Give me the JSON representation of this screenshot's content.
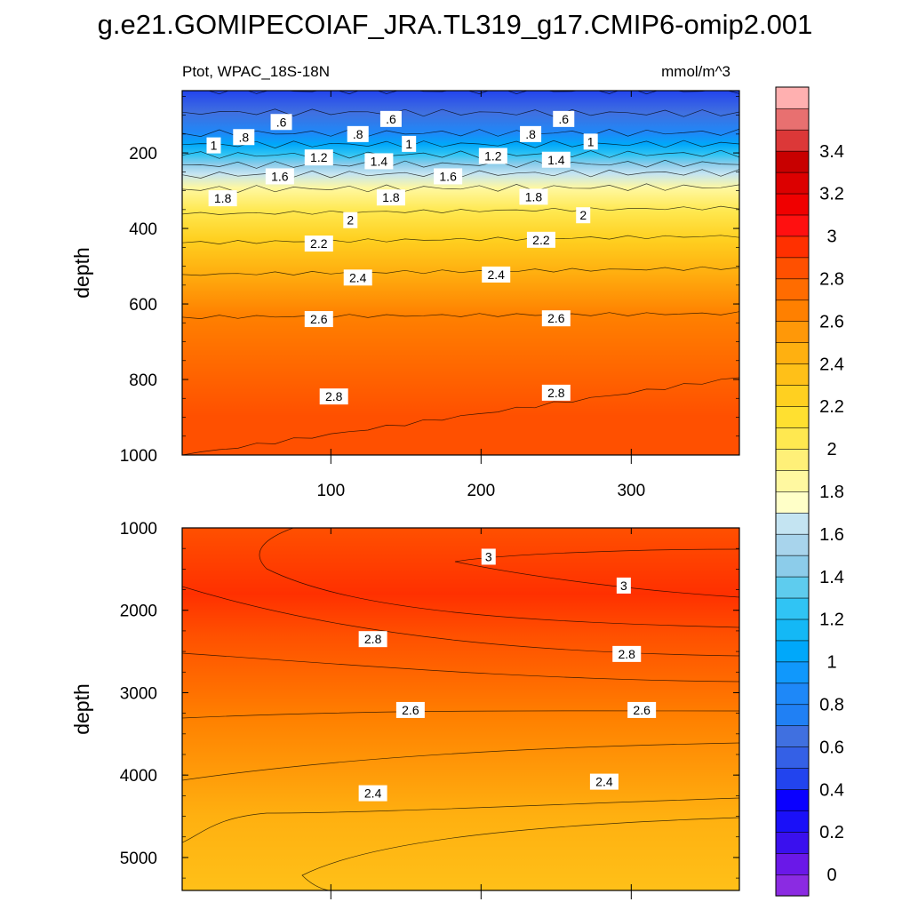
{
  "chart_data": {
    "type": "contour",
    "title": "g.e21.GOMIPECOIAF_JRA.TL319_g17.CMIP6-omip2.001",
    "variable_label": "Ptot, WPAC_18S-18N",
    "units": "mmol/m^3",
    "xlim": [
      1,
      372
    ],
    "x_ticks": [
      100,
      200,
      300
    ],
    "panels": [
      {
        "name": "upper",
        "ylabel": "depth",
        "ylim": [
          1000,
          35
        ],
        "y_ticks": [
          200,
          400,
          600,
          800,
          1000
        ],
        "show_x_tick_labels": true,
        "contour_levels": [
          {
            "value": 0.4,
            "depth_left": 35,
            "depth_right": 35
          },
          {
            "value": 0.6,
            "depth_left": 92,
            "depth_right": 95
          },
          {
            "value": 0.8,
            "depth_left": 148,
            "depth_right": 146
          },
          {
            "value": 1.0,
            "depth_left": 178,
            "depth_right": 176
          },
          {
            "value": 1.2,
            "depth_left": 206,
            "depth_right": 202
          },
          {
            "value": 1.4,
            "depth_left": 232,
            "depth_right": 228
          },
          {
            "value": 1.6,
            "depth_left": 258,
            "depth_right": 252
          },
          {
            "value": 1.8,
            "depth_left": 296,
            "depth_right": 290
          },
          {
            "value": 2.0,
            "depth_left": 362,
            "depth_right": 345
          },
          {
            "value": 2.2,
            "depth_left": 438,
            "depth_right": 420
          },
          {
            "value": 2.4,
            "depth_left": 522,
            "depth_right": 505
          },
          {
            "value": 2.6,
            "depth_left": 635,
            "depth_right": 625
          },
          {
            "value": 2.8,
            "depth_left": 1000,
            "depth_right": 795
          }
        ],
        "contour_labels": [
          {
            "text": ".8",
            "x": 42,
            "depth": 158
          },
          {
            "text": ".6",
            "x": 67,
            "depth": 118
          },
          {
            "text": "1",
            "x": 22,
            "depth": 180
          },
          {
            "text": ".8",
            "x": 118,
            "depth": 150
          },
          {
            "text": ".6",
            "x": 140,
            "depth": 110
          },
          {
            "text": "1",
            "x": 152,
            "depth": 176
          },
          {
            "text": "1.2",
            "x": 92,
            "depth": 212
          },
          {
            "text": "1.4",
            "x": 132,
            "depth": 222
          },
          {
            "text": "1.6",
            "x": 66,
            "depth": 262
          },
          {
            "text": "1.6",
            "x": 178,
            "depth": 262
          },
          {
            "text": "1.2",
            "x": 208,
            "depth": 208
          },
          {
            "text": ".8",
            "x": 233,
            "depth": 150
          },
          {
            "text": ".6",
            "x": 255,
            "depth": 110
          },
          {
            "text": "1.4",
            "x": 250,
            "depth": 218
          },
          {
            "text": "1",
            "x": 273,
            "depth": 170
          },
          {
            "text": "1.8",
            "x": 28,
            "depth": 320
          },
          {
            "text": "1.8",
            "x": 140,
            "depth": 318
          },
          {
            "text": "1.8",
            "x": 235,
            "depth": 316
          },
          {
            "text": "2",
            "x": 113,
            "depth": 378
          },
          {
            "text": "2",
            "x": 268,
            "depth": 365
          },
          {
            "text": "2.2",
            "x": 92,
            "depth": 440
          },
          {
            "text": "2.2",
            "x": 240,
            "depth": 430
          },
          {
            "text": "2.4",
            "x": 118,
            "depth": 530
          },
          {
            "text": "2.4",
            "x": 210,
            "depth": 522
          },
          {
            "text": "2.6",
            "x": 92,
            "depth": 640
          },
          {
            "text": "2.6",
            "x": 250,
            "depth": 638
          },
          {
            "text": "2.8",
            "x": 102,
            "depth": 845
          },
          {
            "text": "2.8",
            "x": 250,
            "depth": 835
          }
        ]
      },
      {
        "name": "lower",
        "ylabel": "depth",
        "ylim": [
          5400,
          1000
        ],
        "y_ticks": [
          1000,
          2000,
          3000,
          4000,
          5000
        ],
        "show_x_tick_labels": false,
        "contour_labels": [
          {
            "text": "3",
            "x": 205,
            "depth": 1350
          },
          {
            "text": "3",
            "x": 295,
            "depth": 1700
          },
          {
            "text": "2.8",
            "x": 128,
            "depth": 2350
          },
          {
            "text": "2.8",
            "x": 297,
            "depth": 2530
          },
          {
            "text": "2.6",
            "x": 153,
            "depth": 3210
          },
          {
            "text": "2.6",
            "x": 307,
            "depth": 3210
          },
          {
            "text": "2.4",
            "x": 128,
            "depth": 4220
          },
          {
            "text": "2.4",
            "x": 282,
            "depth": 4080
          }
        ]
      }
    ],
    "colorbar": {
      "levels": [
        -0.1,
        0,
        0.1,
        0.2,
        0.3,
        0.4,
        0.5,
        0.6,
        0.7,
        0.8,
        0.9,
        1.0,
        1.1,
        1.2,
        1.3,
        1.4,
        1.5,
        1.6,
        1.7,
        1.8,
        1.9,
        2.0,
        2.1,
        2.2,
        2.3,
        2.4,
        2.5,
        2.6,
        2.7,
        2.8,
        2.9,
        3.0,
        3.1,
        3.2,
        3.3,
        3.4,
        3.5,
        3.6
      ],
      "tick_labels": [
        "0",
        "0.2",
        "0.4",
        "0.6",
        "0.8",
        "1",
        "1.2",
        "1.4",
        "1.6",
        "1.8",
        "2",
        "2.2",
        "2.4",
        "2.6",
        "2.8",
        "3",
        "3.2",
        "3.4"
      ],
      "colors": [
        "#8B2BE2",
        "#6A18E8",
        "#3A10EE",
        "#1A10F8",
        "#0A00FF",
        "#2244EE",
        "#3460E6",
        "#4070E0",
        "#2080F4",
        "#1E88F8",
        "#1098FC",
        "#00A8FA",
        "#14B8F6",
        "#30C4F4",
        "#5ECCEE",
        "#8CCCEA",
        "#A8D4EC",
        "#C4E4F2",
        "#FFFFC8",
        "#FFF8A0",
        "#FFF078",
        "#FFE850",
        "#FFE030",
        "#FFD020",
        "#FFC018",
        "#FFB010",
        "#FF9808",
        "#FF8000",
        "#FF6C00",
        "#FF5000",
        "#FF3000",
        "#FF1010",
        "#F00000",
        "#DC0000",
        "#C80000",
        "#DC3838",
        "#E87070",
        "#FFB0B0"
      ]
    }
  }
}
